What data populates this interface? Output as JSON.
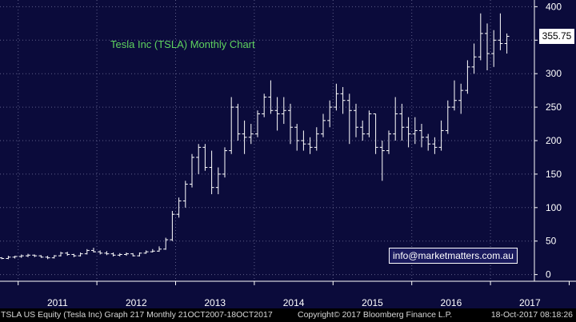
{
  "chart_data": {
    "type": "bar",
    "title": "Tesla Inc (TSLA) Monthly Chart",
    "xlabel": "",
    "ylabel": "",
    "ylim": [
      -10,
      410
    ],
    "y_ticks": [
      0,
      50,
      100,
      150,
      200,
      250,
      300,
      350,
      400
    ],
    "x_ticks": [
      "2011",
      "2012",
      "2013",
      "2014",
      "2015",
      "2016",
      "2017"
    ],
    "last_price": "355.75",
    "grid": true,
    "series": [
      {
        "ohlc": [
          [
            25,
            26,
            23,
            24
          ],
          [
            24,
            28,
            23,
            26
          ],
          [
            26,
            28,
            24,
            27
          ],
          [
            27,
            30,
            25,
            28
          ],
          [
            28,
            31,
            26,
            29
          ],
          [
            29,
            30,
            26,
            28
          ],
          [
            28,
            29,
            25,
            26
          ],
          [
            26,
            28,
            23,
            25
          ],
          [
            25,
            29,
            24,
            28
          ],
          [
            28,
            34,
            27,
            32
          ],
          [
            32,
            34,
            28,
            30
          ],
          [
            30,
            31,
            26,
            28
          ],
          [
            28,
            33,
            27,
            31
          ],
          [
            31,
            38,
            30,
            36
          ],
          [
            36,
            40,
            33,
            34
          ],
          [
            34,
            36,
            30,
            32
          ],
          [
            32,
            35,
            29,
            31
          ],
          [
            31,
            33,
            27,
            29
          ],
          [
            29,
            32,
            27,
            30
          ],
          [
            30,
            33,
            28,
            31
          ],
          [
            31,
            32,
            27,
            28
          ],
          [
            28,
            33,
            27,
            32
          ],
          [
            32,
            36,
            31,
            34
          ],
          [
            34,
            38,
            33,
            35
          ],
          [
            35,
            42,
            34,
            38
          ],
          [
            38,
            55,
            37,
            52
          ],
          [
            52,
            95,
            50,
            90
          ],
          [
            90,
            115,
            85,
            110
          ],
          [
            110,
            140,
            100,
            135
          ],
          [
            135,
            180,
            130,
            175
          ],
          [
            175,
            195,
            150,
            190
          ],
          [
            190,
            195,
            155,
            160
          ],
          [
            160,
            185,
            120,
            130
          ],
          [
            130,
            160,
            120,
            150
          ],
          [
            150,
            190,
            145,
            185
          ],
          [
            185,
            265,
            180,
            250
          ],
          [
            250,
            255,
            200,
            210
          ],
          [
            210,
            230,
            180,
            205
          ],
          [
            205,
            225,
            195,
            210
          ],
          [
            210,
            245,
            205,
            240
          ],
          [
            240,
            270,
            235,
            265
          ],
          [
            265,
            290,
            240,
            245
          ],
          [
            245,
            265,
            215,
            240
          ],
          [
            240,
            265,
            225,
            245
          ],
          [
            245,
            255,
            195,
            220
          ],
          [
            220,
            225,
            185,
            200
          ],
          [
            200,
            215,
            185,
            195
          ],
          [
            195,
            205,
            180,
            190
          ],
          [
            190,
            220,
            185,
            210
          ],
          [
            210,
            240,
            205,
            230
          ],
          [
            230,
            260,
            220,
            250
          ],
          [
            250,
            285,
            245,
            270
          ],
          [
            270,
            280,
            240,
            260
          ],
          [
            260,
            270,
            195,
            245
          ],
          [
            245,
            255,
            205,
            220
          ],
          [
            220,
            230,
            200,
            210
          ],
          [
            210,
            245,
            205,
            240
          ],
          [
            240,
            240,
            180,
            190
          ],
          [
            190,
            200,
            140,
            185
          ],
          [
            185,
            215,
            180,
            210
          ],
          [
            210,
            265,
            200,
            240
          ],
          [
            240,
            255,
            200,
            220
          ],
          [
            220,
            235,
            190,
            210
          ],
          [
            210,
            235,
            195,
            215
          ],
          [
            215,
            225,
            190,
            205
          ],
          [
            205,
            210,
            185,
            195
          ],
          [
            195,
            205,
            180,
            190
          ],
          [
            190,
            230,
            185,
            215
          ],
          [
            215,
            260,
            210,
            250
          ],
          [
            250,
            290,
            245,
            260
          ],
          [
            260,
            285,
            240,
            275
          ],
          [
            275,
            320,
            270,
            310
          ],
          [
            310,
            345,
            300,
            325
          ],
          [
            325,
            390,
            320,
            360
          ],
          [
            360,
            375,
            305,
            330
          ],
          [
            330,
            365,
            310,
            350
          ],
          [
            350,
            390,
            335,
            345
          ],
          [
            345,
            360,
            330,
            355.75
          ]
        ]
      }
    ]
  },
  "annotation": "info@marketmatters.com.au",
  "footer": {
    "left": "TSLA US Equity (Tesla Inc) Graph 217  Monthly 21OCT2007-18OCT2017",
    "middle": "Copyright© 2017 Bloomberg Finance L.P.",
    "right": "18-Oct-2017 08:18:26"
  },
  "colors": {
    "background": "#0b0b3b",
    "grid": "#5e5e88",
    "bar": "#ffffff",
    "title": "#5fd35f",
    "axis_text": "#ffffff"
  }
}
